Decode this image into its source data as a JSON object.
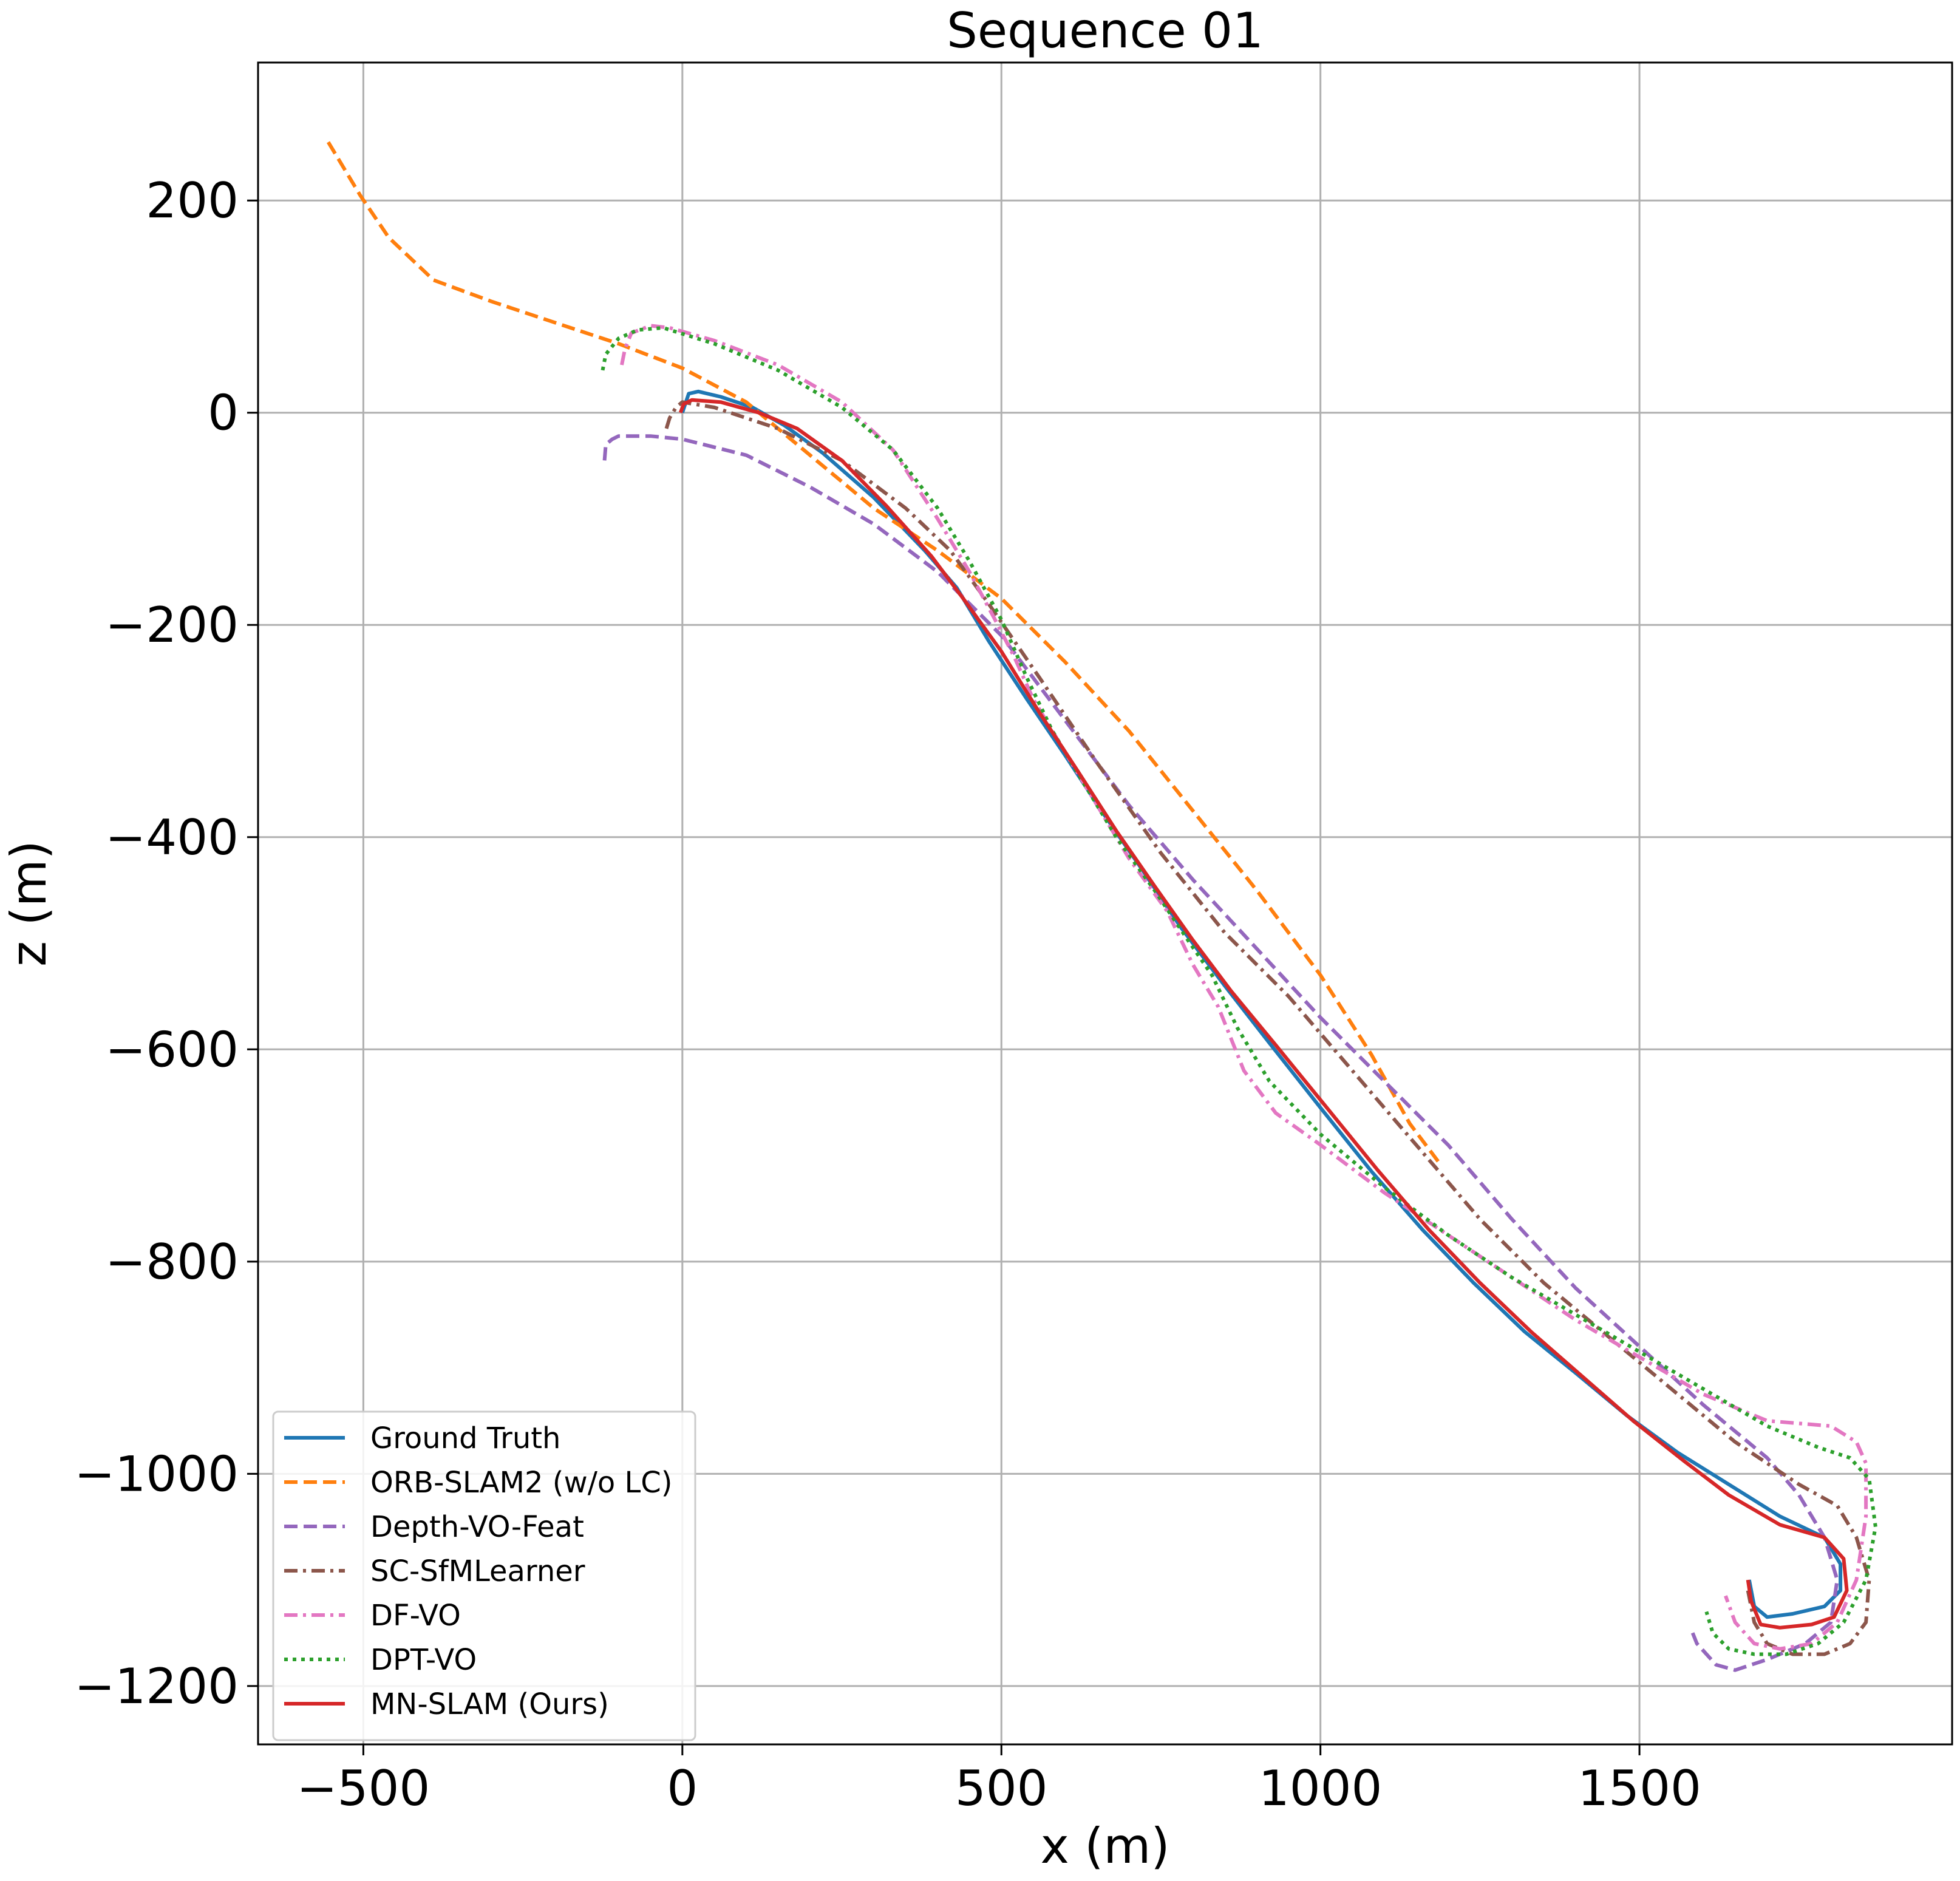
{
  "chart_data": {
    "type": "line",
    "title": "Sequence 01",
    "xlabel": "x (m)",
    "ylabel": "z (m)",
    "xlim": [
      -665,
      1990
    ],
    "ylim": [
      -1255,
      330
    ],
    "xticks": [
      -500,
      0,
      500,
      1000,
      1500
    ],
    "yticks": [
      200,
      0,
      -200,
      -400,
      -600,
      -800,
      -1000,
      -1200
    ],
    "xtick_labels": [
      "−500",
      "0",
      "500",
      "1000",
      "1500"
    ],
    "ytick_labels": [
      "200",
      "0",
      "−200",
      "−400",
      "−600",
      "−800",
      "−1000",
      "−1200"
    ],
    "grid": true,
    "legend_position": "lower-left",
    "series": [
      {
        "name": "Ground Truth",
        "color": "#1f77b4",
        "dash": "solid",
        "points": [
          [
            0,
            0
          ],
          [
            10,
            18
          ],
          [
            25,
            20
          ],
          [
            60,
            15
          ],
          [
            110,
            5
          ],
          [
            160,
            -12
          ],
          [
            220,
            -38
          ],
          [
            300,
            -80
          ],
          [
            380,
            -130
          ],
          [
            430,
            -165
          ],
          [
            480,
            -215
          ],
          [
            540,
            -270
          ],
          [
            600,
            -323
          ],
          [
            660,
            -378
          ],
          [
            720,
            -430
          ],
          [
            780,
            -484
          ],
          [
            850,
            -540
          ],
          [
            920,
            -594
          ],
          [
            1000,
            -655
          ],
          [
            1080,
            -715
          ],
          [
            1160,
            -770
          ],
          [
            1240,
            -820
          ],
          [
            1320,
            -866
          ],
          [
            1400,
            -905
          ],
          [
            1480,
            -945
          ],
          [
            1560,
            -980
          ],
          [
            1640,
            -1010
          ],
          [
            1720,
            -1040
          ],
          [
            1790,
            -1060
          ],
          [
            1815,
            -1085
          ],
          [
            1815,
            -1110
          ],
          [
            1790,
            -1125
          ],
          [
            1740,
            -1132
          ],
          [
            1700,
            -1135
          ],
          [
            1680,
            -1125
          ],
          [
            1672,
            -1100
          ]
        ]
      },
      {
        "name": "ORB-SLAM2 (w/o LC)",
        "color": "#ff7f0e",
        "dash": "dashed",
        "points": [
          [
            -555,
            255
          ],
          [
            -540,
            240
          ],
          [
            -505,
            205
          ],
          [
            -460,
            165
          ],
          [
            -390,
            125
          ],
          [
            -300,
            105
          ],
          [
            -200,
            85
          ],
          [
            -100,
            65
          ],
          [
            0,
            42
          ],
          [
            100,
            10
          ],
          [
            200,
            -40
          ],
          [
            300,
            -90
          ],
          [
            400,
            -130
          ],
          [
            500,
            -175
          ],
          [
            600,
            -235
          ],
          [
            700,
            -300
          ],
          [
            800,
            -375
          ],
          [
            900,
            -450
          ],
          [
            1000,
            -530
          ],
          [
            1080,
            -605
          ],
          [
            1140,
            -670
          ],
          [
            1190,
            -710
          ]
        ]
      },
      {
        "name": "Depth-VO-Feat",
        "color": "#9467bd",
        "dash": "dashed",
        "points": [
          [
            -122,
            -45
          ],
          [
            -120,
            -30
          ],
          [
            -110,
            -25
          ],
          [
            -100,
            -22
          ],
          [
            -50,
            -22
          ],
          [
            0,
            -25
          ],
          [
            100,
            -40
          ],
          [
            200,
            -70
          ],
          [
            300,
            -105
          ],
          [
            400,
            -150
          ],
          [
            500,
            -210
          ],
          [
            600,
            -290
          ],
          [
            700,
            -370
          ],
          [
            800,
            -440
          ],
          [
            900,
            -505
          ],
          [
            1000,
            -570
          ],
          [
            1100,
            -630
          ],
          [
            1200,
            -690
          ],
          [
            1300,
            -760
          ],
          [
            1400,
            -825
          ],
          [
            1500,
            -880
          ],
          [
            1600,
            -935
          ],
          [
            1700,
            -985
          ],
          [
            1750,
            -1020
          ],
          [
            1790,
            -1060
          ],
          [
            1810,
            -1100
          ],
          [
            1800,
            -1140
          ],
          [
            1760,
            -1160
          ],
          [
            1700,
            -1175
          ],
          [
            1650,
            -1185
          ],
          [
            1620,
            -1180
          ],
          [
            1590,
            -1160
          ],
          [
            1580,
            -1145
          ]
        ]
      },
      {
        "name": "SC-SfMLearner",
        "color": "#8c564b",
        "dash": "dashdot",
        "points": [
          [
            -25,
            -15
          ],
          [
            -20,
            -5
          ],
          [
            -10,
            5
          ],
          [
            0,
            10
          ],
          [
            50,
            5
          ],
          [
            150,
            -15
          ],
          [
            250,
            -45
          ],
          [
            350,
            -90
          ],
          [
            420,
            -130
          ],
          [
            480,
            -180
          ],
          [
            560,
            -250
          ],
          [
            650,
            -330
          ],
          [
            750,
            -415
          ],
          [
            850,
            -490
          ],
          [
            950,
            -550
          ],
          [
            1050,
            -620
          ],
          [
            1150,
            -690
          ],
          [
            1250,
            -760
          ],
          [
            1350,
            -820
          ],
          [
            1450,
            -870
          ],
          [
            1550,
            -920
          ],
          [
            1650,
            -970
          ],
          [
            1750,
            -1010
          ],
          [
            1810,
            -1030
          ],
          [
            1840,
            -1060
          ],
          [
            1860,
            -1100
          ],
          [
            1855,
            -1140
          ],
          [
            1830,
            -1160
          ],
          [
            1790,
            -1170
          ],
          [
            1740,
            -1170
          ],
          [
            1700,
            -1160
          ],
          [
            1680,
            -1140
          ],
          [
            1670,
            -1110
          ]
        ]
      },
      {
        "name": "DF-VO",
        "color": "#e377c2",
        "dash": "dashdot",
        "points": [
          [
            -95,
            45
          ],
          [
            -90,
            60
          ],
          [
            -80,
            75
          ],
          [
            -50,
            82
          ],
          [
            -20,
            80
          ],
          [
            50,
            68
          ],
          [
            150,
            45
          ],
          [
            250,
            10
          ],
          [
            330,
            -35
          ],
          [
            400,
            -100
          ],
          [
            450,
            -150
          ],
          [
            490,
            -195
          ],
          [
            520,
            -230
          ],
          [
            550,
            -270
          ],
          [
            600,
            -320
          ],
          [
            650,
            -370
          ],
          [
            700,
            -420
          ],
          [
            760,
            -470
          ],
          [
            800,
            -520
          ],
          [
            840,
            -560
          ],
          [
            880,
            -620
          ],
          [
            930,
            -660
          ],
          [
            1000,
            -690
          ],
          [
            1100,
            -735
          ],
          [
            1200,
            -775
          ],
          [
            1300,
            -815
          ],
          [
            1400,
            -855
          ],
          [
            1500,
            -890
          ],
          [
            1600,
            -925
          ],
          [
            1700,
            -950
          ],
          [
            1800,
            -955
          ],
          [
            1840,
            -970
          ],
          [
            1855,
            -990
          ],
          [
            1855,
            -1040
          ],
          [
            1840,
            -1100
          ],
          [
            1810,
            -1140
          ],
          [
            1770,
            -1160
          ],
          [
            1720,
            -1165
          ],
          [
            1680,
            -1160
          ],
          [
            1650,
            -1140
          ],
          [
            1635,
            -1115
          ]
        ]
      },
      {
        "name": "DPT-VO",
        "color": "#2ca02c",
        "dash": "dotted",
        "points": [
          [
            -125,
            40
          ],
          [
            -120,
            55
          ],
          [
            -100,
            70
          ],
          [
            -70,
            78
          ],
          [
            -30,
            80
          ],
          [
            50,
            65
          ],
          [
            150,
            40
          ],
          [
            250,
            5
          ],
          [
            330,
            -35
          ],
          [
            400,
            -90
          ],
          [
            450,
            -140
          ],
          [
            500,
            -195
          ],
          [
            540,
            -250
          ],
          [
            580,
            -300
          ],
          [
            630,
            -350
          ],
          [
            680,
            -400
          ],
          [
            740,
            -450
          ],
          [
            790,
            -495
          ],
          [
            830,
            -530
          ],
          [
            870,
            -580
          ],
          [
            920,
            -630
          ],
          [
            1000,
            -680
          ],
          [
            1100,
            -730
          ],
          [
            1200,
            -775
          ],
          [
            1300,
            -815
          ],
          [
            1400,
            -850
          ],
          [
            1500,
            -885
          ],
          [
            1600,
            -920
          ],
          [
            1700,
            -955
          ],
          [
            1780,
            -975
          ],
          [
            1830,
            -985
          ],
          [
            1860,
            -1005
          ],
          [
            1870,
            -1050
          ],
          [
            1855,
            -1100
          ],
          [
            1820,
            -1140
          ],
          [
            1780,
            -1160
          ],
          [
            1730,
            -1170
          ],
          [
            1680,
            -1170
          ],
          [
            1640,
            -1165
          ],
          [
            1615,
            -1150
          ],
          [
            1605,
            -1130
          ]
        ]
      },
      {
        "name": "MN-SLAM (Ours)",
        "color": "#d62728",
        "dash": "solid",
        "points": [
          [
            -3,
            0
          ],
          [
            2,
            8
          ],
          [
            15,
            12
          ],
          [
            60,
            10
          ],
          [
            120,
            0
          ],
          [
            180,
            -15
          ],
          [
            250,
            -45
          ],
          [
            320,
            -88
          ],
          [
            390,
            -135
          ],
          [
            440,
            -175
          ],
          [
            500,
            -225
          ],
          [
            560,
            -283
          ],
          [
            620,
            -338
          ],
          [
            680,
            -394
          ],
          [
            740,
            -446
          ],
          [
            800,
            -497
          ],
          [
            860,
            -545
          ],
          [
            930,
            -596
          ],
          [
            1010,
            -655
          ],
          [
            1090,
            -714
          ],
          [
            1170,
            -770
          ],
          [
            1250,
            -820
          ],
          [
            1330,
            -866
          ],
          [
            1410,
            -908
          ],
          [
            1490,
            -950
          ],
          [
            1570,
            -988
          ],
          [
            1640,
            -1020
          ],
          [
            1720,
            -1048
          ],
          [
            1790,
            -1060
          ],
          [
            1820,
            -1080
          ],
          [
            1825,
            -1110
          ],
          [
            1805,
            -1135
          ],
          [
            1770,
            -1142
          ],
          [
            1720,
            -1145
          ],
          [
            1690,
            -1142
          ],
          [
            1675,
            -1120
          ],
          [
            1670,
            -1100
          ]
        ]
      }
    ]
  }
}
